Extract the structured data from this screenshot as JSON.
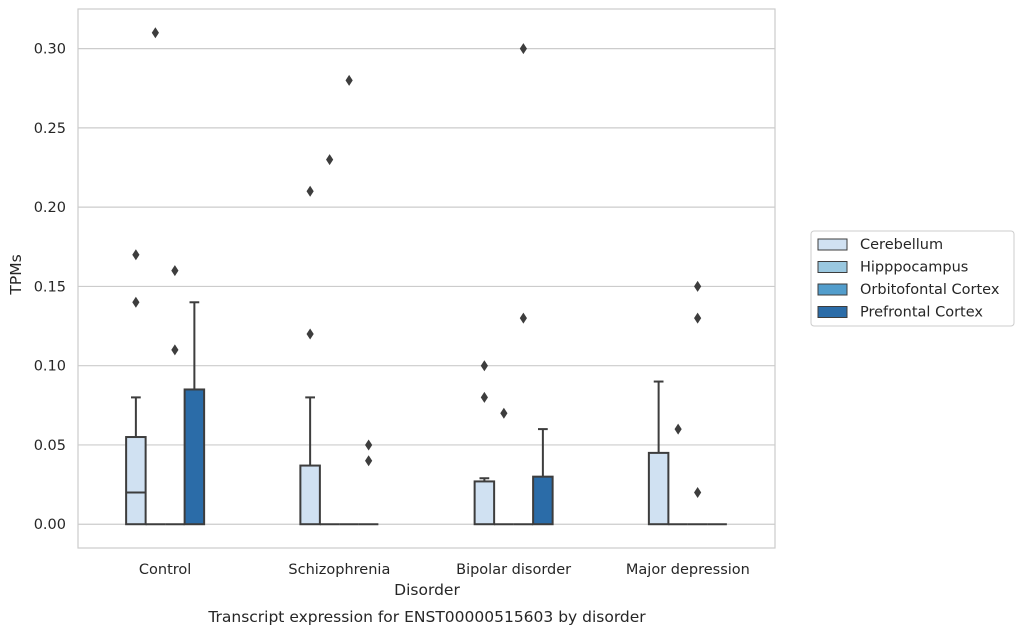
{
  "chart_data": {
    "type": "box",
    "xlabel": "Disorder",
    "ylabel": "TPMs",
    "caption": "Transcript expression for ENST00000515603 by disorder",
    "ylim": [
      -0.015,
      0.325
    ],
    "yticks": [
      "0.00",
      "0.05",
      "0.10",
      "0.15",
      "0.20",
      "0.25",
      "0.30"
    ],
    "ytick_values": [
      0.0,
      0.05,
      0.1,
      0.15,
      0.2,
      0.25,
      0.3
    ],
    "grid": true,
    "legend_position": "right",
    "categories": [
      "Control",
      "Schizophrenia",
      "Bipolar disorder",
      "Major depression"
    ],
    "series": [
      {
        "name": "Cerebellum",
        "color": "#d0e1f2",
        "boxes": [
          {
            "q1": 0.0,
            "median": 0.02,
            "q3": 0.055,
            "whisker_low": 0.0,
            "whisker_high": 0.08,
            "outliers": [
              0.14,
              0.17
            ]
          },
          {
            "q1": 0.0,
            "median": 0.0,
            "q3": 0.037,
            "whisker_low": 0.0,
            "whisker_high": 0.08,
            "outliers": [
              0.12,
              0.21
            ]
          },
          {
            "q1": 0.0,
            "median": 0.0,
            "q3": 0.027,
            "whisker_low": 0.0,
            "whisker_high": 0.029,
            "outliers": [
              0.08,
              0.1
            ]
          },
          {
            "q1": 0.0,
            "median": 0.0,
            "q3": 0.045,
            "whisker_low": 0.0,
            "whisker_high": 0.09,
            "outliers": []
          }
        ]
      },
      {
        "name": "Hipppocampus",
        "color": "#9ac8e0",
        "boxes": [
          {
            "q1": 0.0,
            "median": 0.0,
            "q3": 0.0,
            "whisker_low": 0.0,
            "whisker_high": 0.0,
            "outliers": [
              0.31
            ]
          },
          {
            "q1": 0.0,
            "median": 0.0,
            "q3": 0.0,
            "whisker_low": 0.0,
            "whisker_high": 0.0,
            "outliers": [
              0.23
            ]
          },
          {
            "q1": 0.0,
            "median": 0.0,
            "q3": 0.0,
            "whisker_low": 0.0,
            "whisker_high": 0.0,
            "outliers": [
              0.07
            ]
          },
          {
            "q1": 0.0,
            "median": 0.0,
            "q3": 0.0,
            "whisker_low": 0.0,
            "whisker_high": 0.0,
            "outliers": [
              0.06
            ]
          }
        ]
      },
      {
        "name": "Orbitofontal Cortex",
        "color": "#529dcc",
        "boxes": [
          {
            "q1": 0.0,
            "median": 0.0,
            "q3": 0.0,
            "whisker_low": 0.0,
            "whisker_high": 0.0,
            "outliers": [
              0.11,
              0.16
            ]
          },
          {
            "q1": 0.0,
            "median": 0.0,
            "q3": 0.0,
            "whisker_low": 0.0,
            "whisker_high": 0.0,
            "outliers": [
              0.28
            ]
          },
          {
            "q1": 0.0,
            "median": 0.0,
            "q3": 0.0,
            "whisker_low": 0.0,
            "whisker_high": 0.0,
            "outliers": [
              0.13,
              0.3
            ]
          },
          {
            "q1": 0.0,
            "median": 0.0,
            "q3": 0.0,
            "whisker_low": 0.0,
            "whisker_high": 0.0,
            "outliers": [
              0.02,
              0.13,
              0.15
            ]
          }
        ]
      },
      {
        "name": "Prefrontal Cortex",
        "color": "#2b6ca8",
        "boxes": [
          {
            "q1": 0.0,
            "median": 0.0,
            "q3": 0.085,
            "whisker_low": 0.0,
            "whisker_high": 0.14,
            "outliers": []
          },
          {
            "q1": 0.0,
            "median": 0.0,
            "q3": 0.0,
            "whisker_low": 0.0,
            "whisker_high": 0.0,
            "outliers": [
              0.04,
              0.05
            ]
          },
          {
            "q1": 0.0,
            "median": 0.0,
            "q3": 0.03,
            "whisker_low": 0.0,
            "whisker_high": 0.06,
            "outliers": []
          },
          {
            "q1": 0.0,
            "median": 0.0,
            "q3": 0.0,
            "whisker_low": 0.0,
            "whisker_high": 0.0,
            "outliers": []
          }
        ]
      }
    ]
  }
}
